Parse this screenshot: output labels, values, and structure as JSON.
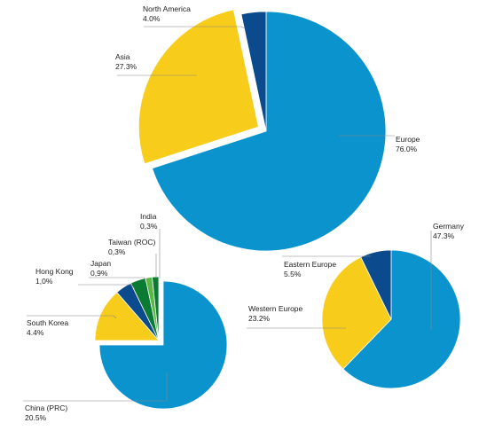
{
  "colors": {
    "blue": "#0a93cc",
    "yellow": "#f7cc1a",
    "navy": "#0b4a8c",
    "green_dark": "#0b7a32",
    "green_light": "#58b947",
    "leader": "#888888"
  },
  "chart_data": [
    {
      "type": "pie",
      "title": "",
      "slices": [
        {
          "label": "Europe",
          "value_text": "76.0%",
          "value": 76.0,
          "color": "#0a93cc"
        },
        {
          "label": "Asia",
          "value_text": "27.3%",
          "value": 27.3,
          "color": "#f7cc1a"
        },
        {
          "label": "North America",
          "value_text": "4.0%",
          "value": 4.0,
          "color": "#0b4a8c"
        }
      ],
      "exploded": "Asia"
    },
    {
      "type": "pie",
      "title": "",
      "slices": [
        {
          "label": "China (PRC)",
          "value_text": "20.5%",
          "value": 20.5,
          "color": "#0a93cc"
        },
        {
          "label": "South Korea",
          "value_text": "4.4%",
          "value": 4.4,
          "color": "#f7cc1a"
        },
        {
          "label": "Hong Kong",
          "value_text": "1,0%",
          "value": 1.0,
          "color": "#0b4a8c"
        },
        {
          "label": "Japan",
          "value_text": "0,9%",
          "value": 0.9,
          "color": "#0b7a32"
        },
        {
          "label": "Taiwan (ROC)",
          "value_text": "0,3%",
          "value": 0.3,
          "color": "#58b947"
        },
        {
          "label": "India",
          "value_text": "0,3%",
          "value": 0.3,
          "color": "#0b7a32"
        }
      ],
      "exploded": "non-China"
    },
    {
      "type": "pie",
      "title": "",
      "slices": [
        {
          "label": "Germany",
          "value_text": "47.3%",
          "value": 47.3,
          "color": "#0a93cc"
        },
        {
          "label": "Western Europe",
          "value_text": "23.2%",
          "value": 23.2,
          "color": "#f7cc1a"
        },
        {
          "label": "Eastern Europe",
          "value_text": "5.5%",
          "value": 5.5,
          "color": "#0b4a8c"
        }
      ]
    }
  ]
}
